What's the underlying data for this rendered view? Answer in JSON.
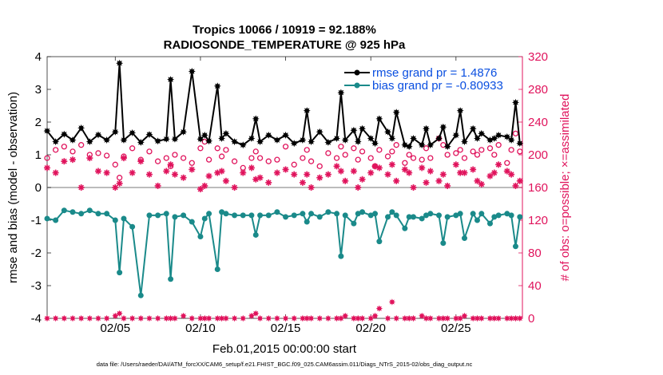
{
  "chart_data": {
    "type": "line",
    "title_line1": "Tropics 10066 / 10919 = 92.188%",
    "title_line2": "RADIOSONDE_TEMPERATURE @ 925 hPa",
    "xlabel": "Feb.01,2015 00:00:00 start",
    "ylabel_left": "rmse and bias (model - observation)",
    "ylabel_right": "# of obs: o=possible; ×=assimilated",
    "ylim_left": [
      -4,
      4
    ],
    "ylim_right": [
      0,
      320
    ],
    "xlim_days": [
      1.0,
      28.9
    ],
    "left_ticks": [
      "4",
      "3",
      "2",
      "1",
      "0",
      "-1",
      "-2",
      "-3",
      "-4"
    ],
    "right_ticks": [
      "320",
      "280",
      "240",
      "200",
      "160",
      "120",
      "80",
      "40",
      "0"
    ],
    "x_ticks": [
      {
        "day": 5,
        "label": "02/05"
      },
      {
        "day": 10,
        "label": "02/10"
      },
      {
        "day": 15,
        "label": "02/15"
      },
      {
        "day": 20,
        "label": "02/20"
      },
      {
        "day": 25,
        "label": "02/25"
      }
    ],
    "x_days": [
      1.0,
      1.5,
      2.0,
      2.5,
      3.0,
      3.5,
      4.0,
      4.5,
      5.0,
      5.25,
      5.5,
      6.0,
      6.5,
      7.0,
      7.5,
      8.0,
      8.25,
      8.5,
      9.0,
      9.5,
      10.0,
      10.25,
      10.5,
      11.0,
      11.25,
      11.5,
      12.0,
      12.5,
      13.0,
      13.25,
      13.5,
      14.0,
      14.5,
      15.0,
      15.5,
      16.0,
      16.25,
      16.5,
      17.0,
      17.5,
      18.0,
      18.25,
      18.5,
      19.0,
      19.25,
      19.5,
      20.0,
      20.25,
      20.5,
      21.0,
      21.25,
      21.5,
      22.0,
      22.25,
      22.5,
      23.0,
      23.25,
      23.5,
      24.0,
      24.25,
      24.5,
      25.0,
      25.25,
      25.5,
      26.0,
      26.25,
      26.5,
      27.0,
      27.25,
      27.5,
      28.0,
      28.25,
      28.5,
      28.75
    ],
    "series": [
      {
        "name": "rmse grand pr = 1.4876",
        "color": "#000000",
        "marker": "star",
        "values": [
          1.73,
          1.4,
          1.63,
          1.45,
          1.82,
          1.4,
          1.61,
          1.45,
          1.7,
          3.8,
          1.45,
          1.67,
          1.38,
          1.62,
          1.42,
          1.48,
          3.3,
          1.48,
          1.7,
          3.55,
          1.48,
          1.6,
          1.42,
          3.1,
          1.5,
          1.65,
          1.4,
          1.3,
          1.5,
          2.1,
          1.4,
          1.6,
          1.45,
          1.6,
          1.35,
          1.45,
          2.35,
          1.4,
          1.7,
          1.38,
          1.5,
          2.9,
          1.45,
          1.75,
          1.4,
          1.8,
          1.5,
          1.35,
          2.1,
          1.7,
          1.5,
          2.3,
          1.3,
          1.25,
          1.5,
          1.3,
          1.8,
          1.3,
          1.5,
          1.85,
          1.25,
          1.6,
          2.35,
          1.4,
          1.8,
          1.5,
          1.65,
          1.45,
          1.5,
          1.6,
          1.55,
          1.45,
          2.6,
          1.35
        ]
      },
      {
        "name": "bias grand pr = -0.80933",
        "color": "#1a8a8a",
        "marker": "dot",
        "values": [
          -0.95,
          -1.0,
          -0.7,
          -0.75,
          -0.8,
          -0.7,
          -0.8,
          -0.8,
          -1.0,
          -2.6,
          -0.95,
          -1.2,
          -3.3,
          -0.85,
          -0.85,
          -0.8,
          -2.8,
          -0.9,
          -0.85,
          -1.05,
          -1.5,
          -0.95,
          -0.8,
          -2.5,
          -0.75,
          -0.8,
          -0.85,
          -0.85,
          -0.85,
          -1.45,
          -0.85,
          -0.85,
          -0.75,
          -0.9,
          -0.85,
          -0.8,
          -1.05,
          -0.8,
          -0.9,
          -0.75,
          -0.8,
          -2.1,
          -0.85,
          -1.1,
          -0.8,
          -0.75,
          -0.85,
          -0.8,
          -1.65,
          -0.9,
          -0.75,
          -0.85,
          -1.25,
          -0.9,
          -0.9,
          -0.95,
          -0.85,
          -0.8,
          -0.85,
          -1.7,
          -0.9,
          -0.85,
          -0.8,
          -1.55,
          -0.8,
          -1.0,
          -0.8,
          -1.1,
          -0.9,
          -0.85,
          -0.8,
          -0.85,
          -1.8,
          -0.9
        ]
      },
      {
        "name": "possible obs",
        "color": "#e0135c",
        "marker": "circle",
        "axis": "right",
        "values": [
          196,
          206,
          210,
          204,
          212,
          200,
          202,
          199,
          188,
          172,
          198,
          208,
          194,
          204,
          192,
          196,
          186,
          200,
          196,
          190,
          208,
          216,
          194,
          208,
          198,
          206,
          192,
          184,
          196,
          204,
          196,
          192,
          194,
          210,
          188,
          196,
          206,
          192,
          186,
          202,
          196,
          210,
          200,
          208,
          194,
          204,
          196,
          186,
          206,
          198,
          204,
          212,
          190,
          200,
          196,
          194,
          208,
          196,
          220,
          212,
          200,
          202,
          206,
          196,
          204,
          200,
          206,
          208,
          200,
          212,
          190,
          206,
          226,
          204
        ]
      },
      {
        "name": "assimilated obs",
        "color": "#e0135c",
        "marker": "asterisk",
        "axis": "right",
        "values": [
          184,
          178,
          192,
          194,
          160,
          196,
          180,
          178,
          160,
          165,
          196,
          178,
          192,
          176,
          162,
          180,
          188,
          176,
          172,
          182,
          158,
          162,
          174,
          178,
          180,
          168,
          160,
          178,
          184,
          170,
          172,
          166,
          178,
          182,
          176,
          166,
          176,
          160,
          172,
          176,
          186,
          180,
          168,
          180,
          160,
          170,
          178,
          186,
          184,
          176,
          188,
          168,
          182,
          178,
          160,
          184,
          166,
          180,
          168,
          176,
          162,
          188,
          178,
          178,
          182,
          168,
          164,
          174,
          178,
          188,
          180,
          176,
          162,
          168
        ]
      }
    ],
    "obs_bottom_color": "#e0135c",
    "obs_bottom_values": [
      0,
      0,
      0,
      0,
      0,
      0,
      0,
      0,
      3,
      6,
      0,
      0,
      0,
      0,
      0,
      0,
      0,
      0,
      3,
      0,
      0,
      0,
      0,
      0,
      0,
      0,
      0,
      0,
      3,
      6,
      0,
      0,
      0,
      0,
      0,
      0,
      0,
      0,
      0,
      0,
      0,
      0,
      3,
      0,
      0,
      0,
      0,
      3,
      12,
      0,
      20,
      0,
      0,
      0,
      0,
      3,
      0,
      0,
      0,
      0,
      0,
      0,
      0,
      3,
      0,
      0,
      0,
      0,
      0,
      0,
      0,
      0,
      0,
      0
    ]
  },
  "legend": {
    "rmse_label": "rmse grand pr = 1.4876",
    "bias_label": "bias grand pr = -0.80933",
    "rmse_color": "#0a4fe0",
    "bias_color": "#0a4fe0"
  },
  "footer": "data file: /Users/raeder/DAI/ATM_forcXX/CAM6_setup/f.e21.FHIST_BGC.f09_025.CAM6assim.011/Diags_NTrS_2015-02/obs_diag_output.nc"
}
